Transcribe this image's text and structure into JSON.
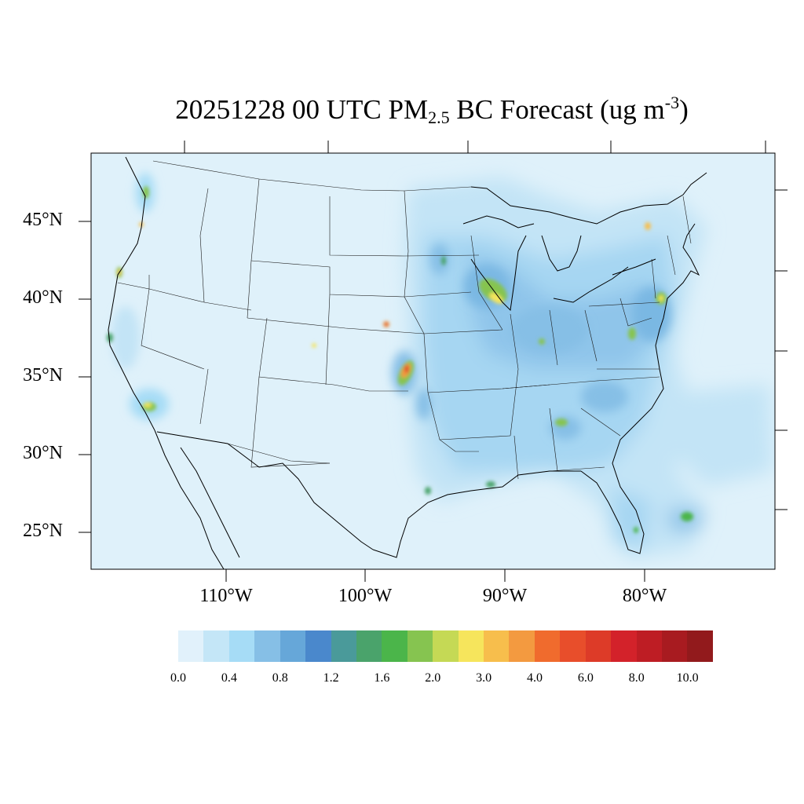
{
  "title": {
    "date": "20251228",
    "hour": "00 UTC",
    "species": "PM",
    "species_sub": "2.5",
    "after_sub": " BC Forecast (ug m",
    "unit_sup": "-3",
    "close": ")"
  },
  "lat_labels": [
    "45°N",
    "40°N",
    "35°N",
    "30°N",
    "25°N"
  ],
  "lon_labels": [
    "110°W",
    "100°W",
    "90°W",
    "80°W"
  ],
  "colorbar": {
    "colors": [
      "#e1f1fb",
      "#c4e6f7",
      "#a6dcf6",
      "#86bfe6",
      "#66a7d9",
      "#4a88cc",
      "#4a9a9a",
      "#4aa36b",
      "#4bb54a",
      "#86c450",
      "#c5d955",
      "#f6e55c",
      "#f7be4c",
      "#f39a40",
      "#f06b2d",
      "#e84e2b",
      "#dd3b28",
      "#d3222a",
      "#be1d24",
      "#a81b20",
      "#921a1c"
    ],
    "tick_labels": [
      "0.0",
      "0.4",
      "0.8",
      "1.2",
      "1.6",
      "2.0",
      "3.0",
      "4.0",
      "6.0",
      "8.0",
      "10.0"
    ]
  }
}
